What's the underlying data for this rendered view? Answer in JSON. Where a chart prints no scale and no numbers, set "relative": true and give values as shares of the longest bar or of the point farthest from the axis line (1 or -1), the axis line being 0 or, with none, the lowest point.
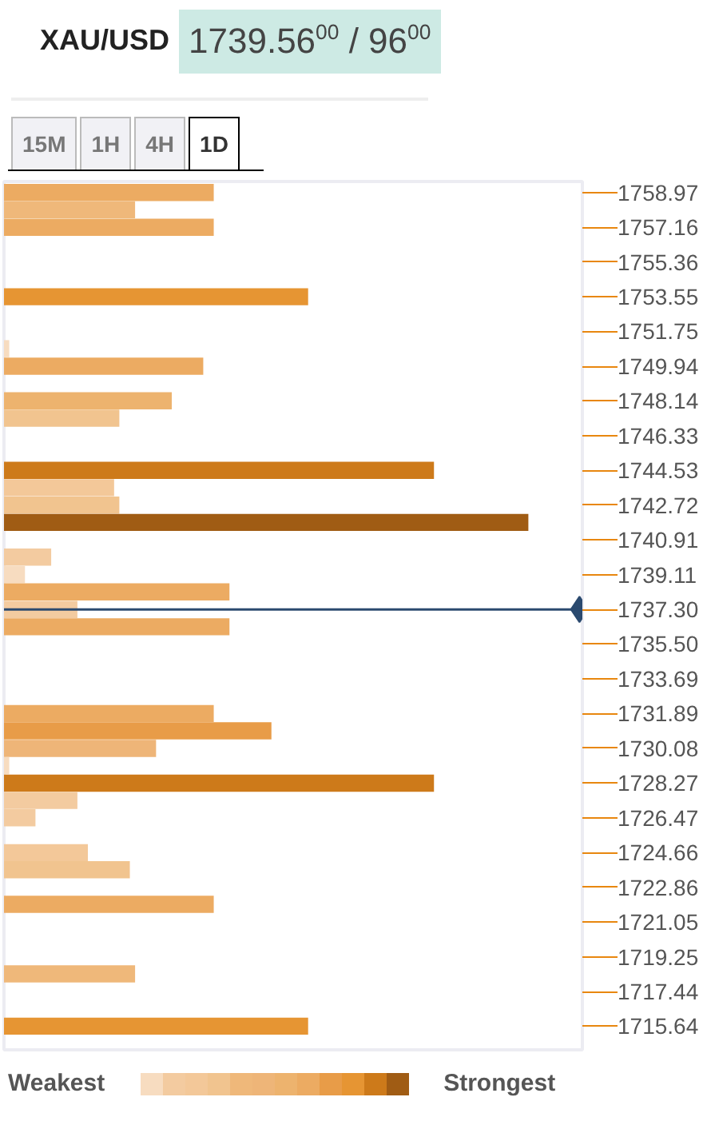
{
  "chart_data": {
    "type": "bar",
    "orientation": "horizontal",
    "relative": true,
    "title": "XAU/USD",
    "subtitle": "1739.56$^{00}$ / 96$^{00}$",
    "annotations": [
      "15M",
      "1H",
      "4H",
      "1D",
      "Weakest",
      "Strongest"
    ],
    "x": [
      1758.97,
      1758.07,
      1757.16,
      1753.55,
      1750.85,
      1749.94,
      1748.14,
      1747.24,
      1744.53,
      1743.63,
      1742.72,
      1741.82,
      1740.02,
      1739.11,
      1738.21,
      1737.3,
      1736.4,
      1731.89,
      1730.99,
      1730.08,
      1729.18,
      1728.27,
      1727.37,
      1726.47,
      1724.66,
      1723.77,
      1721.97,
      1718.36,
      1715.64
    ],
    "values": [
      0.4,
      0.25,
      0.4,
      0.58,
      0.01,
      0.38,
      0.32,
      0.22,
      0.82,
      0.21,
      0.22,
      1.0,
      0.09,
      0.04,
      0.43,
      0.14,
      0.43,
      0.4,
      0.51,
      0.29,
      0.01,
      0.82,
      0.14,
      0.06,
      0.16,
      0.24,
      0.4,
      0.25,
      0.58
    ],
    "colors": [
      "#ecab62",
      "#efb87a",
      "#ecab62",
      "#e69533",
      "#f7dcc0",
      "#ecab62",
      "#edb36e",
      "#f1c48f",
      "#cd7a1a",
      "#f3c899",
      "#f1c48f",
      "#a05c14",
      "#f3cba0",
      "#f7dcc0",
      "#ecab62",
      "#f3cba0",
      "#ecab62",
      "#ecab62",
      "#e89c48",
      "#eeb578",
      "#f7dcc0",
      "#cd7a1a",
      "#f3cba0",
      "#f3cba0",
      "#f3c899",
      "#f1c48f",
      "#ecab62",
      "#efb87a",
      "#e69533"
    ],
    "ylim": [
      1714.41,
      1759.54
    ],
    "yticks": [
      1758.97,
      1757.16,
      1755.36,
      1753.55,
      1751.75,
      1749.94,
      1748.14,
      1746.33,
      1744.53,
      1742.72,
      1740.91,
      1739.11,
      {
        "value": 1735.5,
        "label": "1735.50"
      },
      1733.69,
      1731.89,
      1730.08,
      1728.27,
      1726.47,
      1724.66,
      1722.86,
      1721.05,
      1719.25,
      1717.44,
      1715.64
    ],
    "ref_lines": [
      {
        "axis": "y",
        "value": 1737.3,
        "label": "1737.30",
        "color": "#2b4a6f"
      }
    ],
    "grid": false
  }
}
